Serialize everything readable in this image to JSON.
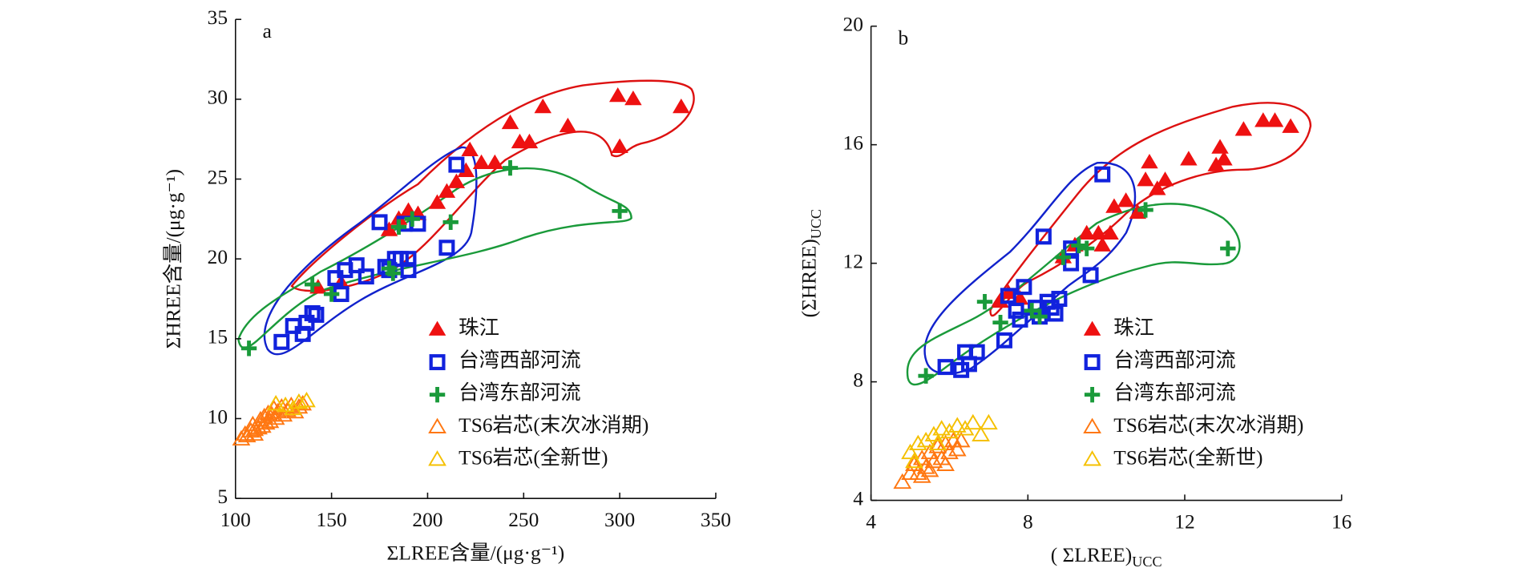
{
  "chart_data": [
    {
      "type": "scatter",
      "panel_label": "a",
      "x_label": "ΣLREE含量/(μg·g⁻¹)",
      "y_label": "ΣHREE含量/(μg·g⁻¹)",
      "xlim": [
        100,
        350
      ],
      "xticks": [
        100,
        150,
        200,
        250,
        300,
        350
      ],
      "ylim": [
        5,
        35
      ],
      "yticks": [
        5,
        10,
        15,
        20,
        25,
        30,
        35
      ],
      "series": [
        {
          "name": "珠江",
          "color": "#ee1111",
          "marker": "triangle",
          "x": [
            143,
            155,
            180,
            185,
            190,
            195,
            205,
            210,
            215,
            220,
            222,
            228,
            235,
            243,
            248,
            253,
            260,
            273,
            299,
            307,
            300,
            332
          ],
          "y": [
            18.2,
            18.5,
            21.8,
            22.5,
            23,
            22.8,
            23.5,
            24.2,
            24.8,
            25.5,
            26.8,
            26,
            26,
            28.5,
            27.3,
            27.3,
            29.5,
            28.3,
            30.2,
            30,
            27,
            29.5
          ]
        },
        {
          "name": "台湾西部河流",
          "color": "#1122dd",
          "marker": "square",
          "x": [
            124,
            130,
            135,
            137,
            140,
            142,
            152,
            155,
            157,
            163,
            168,
            175,
            180,
            183,
            186,
            188,
            190,
            190,
            195,
            210,
            215,
            178
          ],
          "y": [
            14.8,
            15.8,
            15.3,
            16,
            16.6,
            16.5,
            18.8,
            17.8,
            19.3,
            19.6,
            18.9,
            22.3,
            19.3,
            20,
            20,
            22.2,
            19.3,
            20,
            22.2,
            20.7,
            25.9,
            19.5
          ]
        },
        {
          "name": "台湾东部河流",
          "color": "#1a9a3a",
          "marker": "plus",
          "x": [
            107,
            140,
            150,
            180,
            182,
            185,
            192,
            212,
            243,
            300
          ],
          "y": [
            14.4,
            18.4,
            17.8,
            19.4,
            19.1,
            22,
            22.5,
            22.3,
            25.7,
            23
          ]
        },
        {
          "name": "TS6岩芯(末次冰消期)",
          "color": "#ff7711",
          "marker": "triangle-open",
          "x": [
            103,
            106,
            108,
            109,
            110,
            112,
            113,
            114,
            115,
            116,
            117,
            118,
            119,
            120,
            121,
            122,
            124,
            125,
            127,
            129,
            131,
            133,
            135,
            110,
            105
          ],
          "y": [
            8.7,
            8.9,
            9.2,
            9.6,
            9.0,
            9.4,
            9.9,
            9.5,
            10.1,
            9.7,
            10.3,
            9.8,
            10.2,
            10.6,
            10.0,
            10.4,
            10.7,
            10.2,
            10.5,
            10.8,
            10.4,
            10.7,
            10.9,
            9.3,
            9.0
          ]
        },
        {
          "name": "TS6岩芯(全新世)",
          "color": "#f5c000",
          "marker": "triangle-open",
          "x": [
            121,
            126,
            130,
            137,
            133
          ],
          "y": [
            10.9,
            10.8,
            10.6,
            11.1,
            11.0
          ]
        }
      ]
    },
    {
      "type": "scatter",
      "panel_label": "b",
      "x_label": "( ΣLREE)",
      "x_label_sub": "UCC",
      "y_label": "(ΣHREE)",
      "y_label_sub": "UCC",
      "xlim": [
        4,
        16
      ],
      "xticks": [
        4,
        8,
        12,
        16
      ],
      "ylim": [
        4,
        20
      ],
      "yticks": [
        4,
        8,
        12,
        16,
        20
      ],
      "series": [
        {
          "name": "珠江",
          "color": "#ee1111",
          "marker": "triangle",
          "x": [
            7.3,
            7.5,
            7.8,
            8.9,
            9.2,
            9.5,
            9.8,
            9.9,
            10.1,
            10.2,
            10.5,
            10.8,
            11,
            11.1,
            11.3,
            11.5,
            12.1,
            12.8,
            12.9,
            13,
            13.5,
            14,
            14.3,
            14.7
          ],
          "y": [
            10.7,
            11,
            10.8,
            12.2,
            12.6,
            13,
            13,
            12.6,
            13,
            13.9,
            14.1,
            13.7,
            14.8,
            15.4,
            14.5,
            14.8,
            15.5,
            15.3,
            15.9,
            15.5,
            16.5,
            16.8,
            16.8,
            16.6
          ]
        },
        {
          "name": "台湾西部河流",
          "color": "#1122dd",
          "marker": "square",
          "x": [
            5.9,
            6.3,
            6.4,
            6.5,
            6.7,
            7.4,
            7.5,
            7.8,
            7.9,
            8.2,
            8.3,
            8.4,
            8.5,
            8.6,
            8.7,
            8.8,
            9.1,
            9.1,
            9.6,
            9.9,
            7.7
          ],
          "y": [
            8.5,
            8.4,
            9,
            8.6,
            9,
            9.4,
            10.9,
            10.1,
            11.2,
            10.5,
            10.2,
            12.9,
            10.7,
            10.5,
            10.3,
            10.8,
            12,
            12.5,
            11.6,
            15,
            10.4
          ]
        },
        {
          "name": "台湾东部河流",
          "color": "#1a9a3a",
          "marker": "plus",
          "x": [
            5.4,
            6.9,
            7.3,
            8.1,
            8.3,
            8.9,
            9.3,
            9.5,
            11,
            13.1
          ],
          "y": [
            8.2,
            10.7,
            10,
            10.4,
            10.2,
            12.2,
            12.6,
            12.5,
            13.8,
            12.5
          ]
        },
        {
          "name": "TS6岩芯(末次冰消期)",
          "color": "#ff7711",
          "marker": "triangle-open",
          "x": [
            4.8,
            5.0,
            5.1,
            5.2,
            5.3,
            5.4,
            5.5,
            5.6,
            5.7,
            5.8,
            5.9,
            6.0,
            6.1,
            6.2,
            6.3,
            5.5,
            5.9,
            5.3
          ],
          "y": [
            4.6,
            4.9,
            5.2,
            4.9,
            5.4,
            5.1,
            5.6,
            5.3,
            5.8,
            5.4,
            5.9,
            5.6,
            6.0,
            5.7,
            6.0,
            5.0,
            5.2,
            4.8
          ]
        },
        {
          "name": "TS6岩芯(全新世)",
          "color": "#f5c000",
          "marker": "triangle-open",
          "x": [
            5.0,
            5.2,
            5.4,
            5.6,
            5.8,
            6.0,
            6.2,
            6.4,
            6.6,
            6.8,
            7.0,
            5.1,
            5.7
          ],
          "y": [
            5.6,
            5.9,
            6.0,
            6.2,
            6.4,
            6.3,
            6.5,
            6.4,
            6.6,
            6.2,
            6.6,
            5.3,
            5.9
          ]
        }
      ]
    }
  ]
}
